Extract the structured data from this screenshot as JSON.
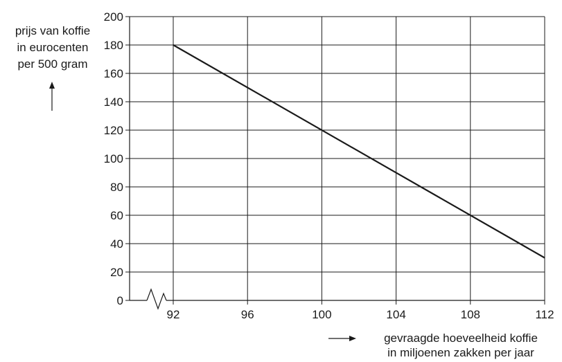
{
  "chart_data": {
    "type": "line",
    "title": "",
    "ylabel_lines": [
      "prijs van koffie",
      "in eurocenten",
      "per 500 gram"
    ],
    "xlabel_lines": [
      "gevraagde hoeveelheid koffie",
      "in miljoenen zakken per jaar"
    ],
    "x": [
      92,
      112
    ],
    "series": [
      {
        "values": [
          180,
          30
        ]
      }
    ],
    "xticks": [
      92,
      96,
      100,
      104,
      108,
      112
    ],
    "yticks": [
      0,
      20,
      40,
      60,
      80,
      100,
      120,
      140,
      160,
      180,
      200
    ],
    "xlim": [
      92,
      112
    ],
    "ylim": [
      0,
      200
    ],
    "x_axis_break": true,
    "grid": true,
    "colors": {
      "line": "#1a1a1a",
      "grid": "#1a1a1a",
      "text": "#1a1a1a"
    }
  }
}
